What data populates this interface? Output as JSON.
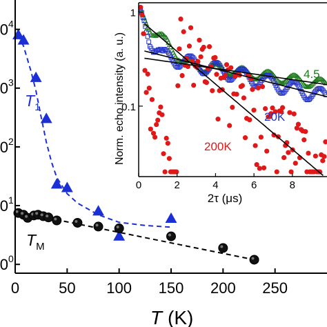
{
  "chart_data": [
    {
      "type": "scatter",
      "xlabel_symbol": "T",
      "xlabel_unit": "(K)",
      "ylim_log10": [
        -0.15,
        4.5
      ],
      "xlim": [
        0,
        300
      ],
      "x_ticks": [
        "0",
        "50",
        "100",
        "150",
        "200",
        "250"
      ],
      "y_ticks": [
        {
          "mantissa": "10",
          "exp": "0"
        },
        {
          "mantissa": "10",
          "exp": "1"
        },
        {
          "mantissa": "10",
          "exp": "2"
        },
        {
          "mantissa": "10",
          "exp": "3"
        },
        {
          "mantissa": "10",
          "exp": "4"
        }
      ],
      "grid": false,
      "series": [
        {
          "name_main": "T",
          "name_sub": "1",
          "color": "#1a2fd6",
          "marker": "triangle",
          "x": [
            3,
            8,
            20,
            30,
            40,
            50,
            80,
            100,
            150
          ],
          "y": [
            8000,
            6500,
            1500,
            300,
            23,
            20,
            8,
            3,
            6
          ],
          "fit": {
            "style": "dashed",
            "color": "#1a2fd6",
            "x": [
              3,
              8,
              15,
              20,
              25,
              30,
              35,
              40,
              50,
              60,
              80,
              100,
              125,
              150
            ],
            "y": [
              8000,
              5200,
              2000,
              900,
              320,
              120,
              55,
              30,
              16,
              11,
              7,
              5.2,
              4.6,
              4.3
            ]
          }
        },
        {
          "name_main": "T",
          "name_sub": "M",
          "color": "#000000",
          "marker": "circle",
          "x": [
            3,
            8,
            12,
            18,
            22,
            27,
            32,
            40,
            60,
            80,
            100,
            150,
            200,
            230
          ],
          "y": [
            7.5,
            7.0,
            6.2,
            6.8,
            7.0,
            6.6,
            6.3,
            5.6,
            5.1,
            4.4,
            4.1,
            3.0,
            1.9,
            1.2
          ],
          "fit": {
            "style": "dashed",
            "color": "#000000",
            "x": [
              0,
              230
            ],
            "y": [
              8.0,
              1.2
            ]
          }
        }
      ]
    },
    {
      "type": "scatter",
      "ylabel": "Norm. echo intensity (a. u.)",
      "xlabel": "2τ (μs)",
      "xlim": [
        0,
        9.8
      ],
      "ylim_log10": [
        -1.75,
        0.1
      ],
      "x_ticks": [
        "0",
        "2",
        "4",
        "6",
        "8"
      ],
      "y_ticks": [
        "1",
        "0.1"
      ],
      "grid": false,
      "series": [
        {
          "name": "4.5",
          "color": "#1d7a1d",
          "marker": "open-triangle",
          "start": 0.95,
          "decay": 0.49,
          "osc": 0.19,
          "noise": 0.01
        },
        {
          "name": "20K",
          "color": "#2333c8",
          "marker": "open-square",
          "start": 0.95,
          "decay": 0.88,
          "osc": 0.3,
          "noise": 0.03
        },
        {
          "name": "200K",
          "color": "#e01818",
          "marker": "filled-circle",
          "start": 0.95,
          "decay": 2.5,
          "osc": 0.45,
          "noise": 0.55
        }
      ],
      "fits": [
        {
          "color": "#000000",
          "a": 0.33,
          "b": 0.068
        },
        {
          "color": "#000000",
          "a": 0.4,
          "b": 0.118
        },
        {
          "color": "#000000",
          "a": 0.85,
          "b": 0.4
        }
      ]
    }
  ]
}
